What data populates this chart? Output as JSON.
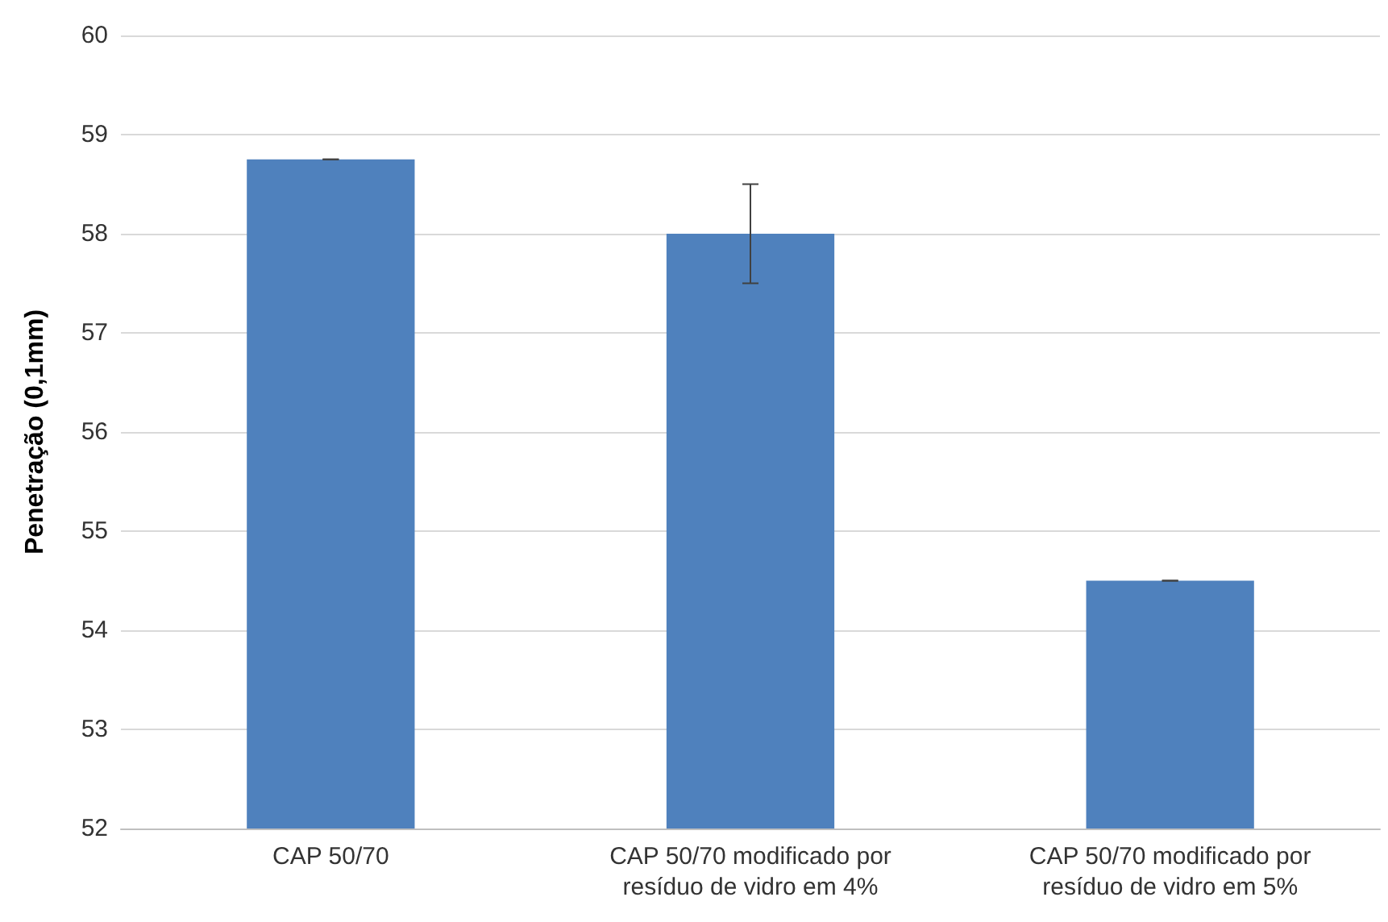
{
  "chart_data": {
    "type": "bar",
    "ylabel": "Penetração (0,1mm)",
    "categories": [
      "CAP 50/70",
      "CAP 50/70 modificado por\nresíduo de vidro em 4%",
      "CAP 50/70 modificado por\nresíduo de vidro em 5%"
    ],
    "values": [
      58.75,
      58.0,
      54.5
    ],
    "errors": [
      0,
      0.5,
      0
    ],
    "color": "#4f81bd",
    "ylim": [
      52,
      60
    ],
    "yticks": [
      52,
      53,
      54,
      55,
      56,
      57,
      58,
      59,
      60
    ],
    "grid": "y"
  }
}
